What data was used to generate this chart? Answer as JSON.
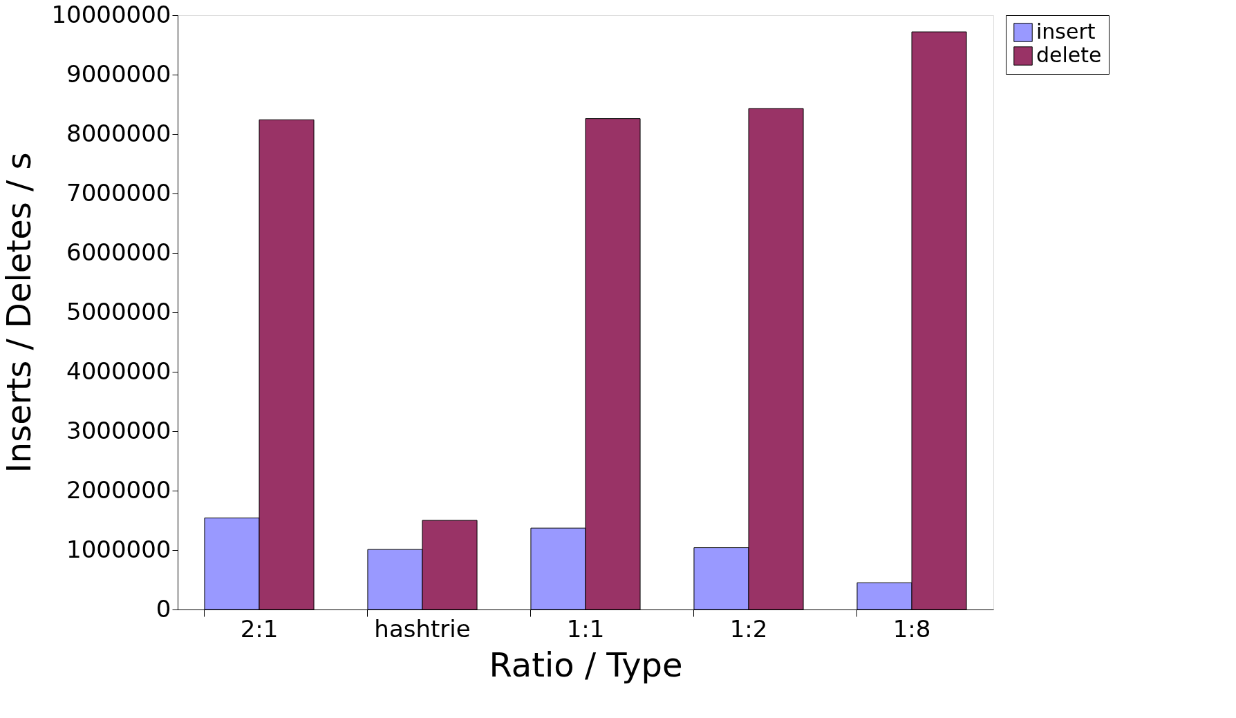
{
  "chart_data": {
    "type": "bar",
    "xlabel": "Ratio / Type",
    "ylabel": "Inserts / Deletes / s",
    "categories": [
      "2:1",
      "hashtrie",
      "1:1",
      "1:2",
      "1:8"
    ],
    "series": [
      {
        "name": "insert",
        "color": "#9999ff",
        "values": [
          1540000,
          1010000,
          1370000,
          1040000,
          450000
        ]
      },
      {
        "name": "delete",
        "color": "#993366",
        "values": [
          8240000,
          1500000,
          8260000,
          8430000,
          9720000
        ]
      }
    ],
    "ylim": [
      0,
      10000000
    ],
    "yticks": [
      0,
      1000000,
      2000000,
      3000000,
      4000000,
      5000000,
      6000000,
      7000000,
      8000000,
      9000000,
      10000000
    ],
    "grid": false,
    "legend": "right"
  }
}
